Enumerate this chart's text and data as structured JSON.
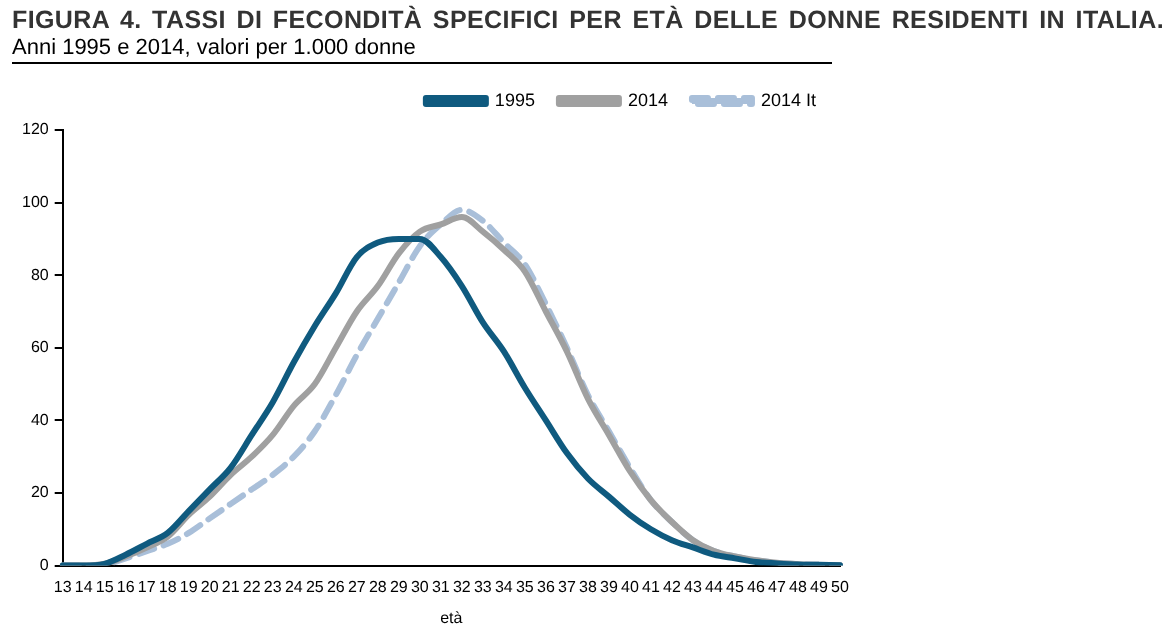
{
  "chart_data": {
    "type": "line",
    "title": "FIGURA 4. TASSI DI FECONDITÀ SPECIFICI PER ETÀ DELLE DONNE RESIDENTI IN ITALIA.",
    "subtitle": "Anni 1995 e 2014, valori per 1.000 donne",
    "xlabel": "età",
    "categories": [
      "13",
      "14",
      "15",
      "16",
      "17",
      "18",
      "19",
      "20",
      "21",
      "22",
      "23",
      "24",
      "25",
      "26",
      "27",
      "28",
      "29",
      "30",
      "31",
      "32",
      "33",
      "34",
      "35",
      "36",
      "37",
      "38",
      "39",
      "40",
      "41",
      "42",
      "43",
      "44",
      "45",
      "46",
      "47",
      "48",
      "49",
      "50"
    ],
    "series": [
      {
        "name": "1995",
        "color": "#0f5a7f",
        "line_style": "solid",
        "values": [
          0,
          0,
          0.5,
          3,
          6,
          9,
          15,
          21,
          27,
          36,
          45,
          56,
          66,
          75,
          85,
          89,
          90,
          90,
          85,
          77,
          67,
          59,
          49,
          40,
          31,
          24,
          19,
          14,
          10,
          7,
          5,
          3,
          2,
          1,
          0.6,
          0.3,
          0.2,
          0.1
        ]
      },
      {
        "name": "2014",
        "color": "#a0a0a0",
        "line_style": "solid",
        "values": [
          0,
          0,
          0.5,
          2.5,
          5,
          8,
          14,
          19,
          25,
          30,
          36,
          44,
          50,
          60,
          70,
          77,
          86,
          92,
          94,
          96,
          92,
          87,
          81,
          70,
          59,
          46,
          36,
          26,
          18,
          12,
          7,
          4,
          2.5,
          1.5,
          0.8,
          0.4,
          0.2,
          0.1
        ]
      },
      {
        "name": "2014 It",
        "color": "#a9bfd9",
        "line_style": "dashed",
        "values": [
          0,
          0,
          0.3,
          2,
          4,
          6,
          9,
          13,
          17,
          21,
          25,
          30,
          37,
          47,
          58,
          68,
          78,
          88,
          94,
          98,
          95,
          89,
          83,
          72,
          60,
          47,
          37,
          27,
          18,
          12,
          7,
          4,
          2.5,
          1.5,
          0.8,
          0.4,
          0.2,
          0.1
        ]
      }
    ],
    "ylim": [
      0,
      120
    ],
    "yticks": [
      0,
      20,
      40,
      60,
      80,
      100,
      120
    ],
    "grid": false,
    "legend": "top right",
    "marker": "none"
  }
}
